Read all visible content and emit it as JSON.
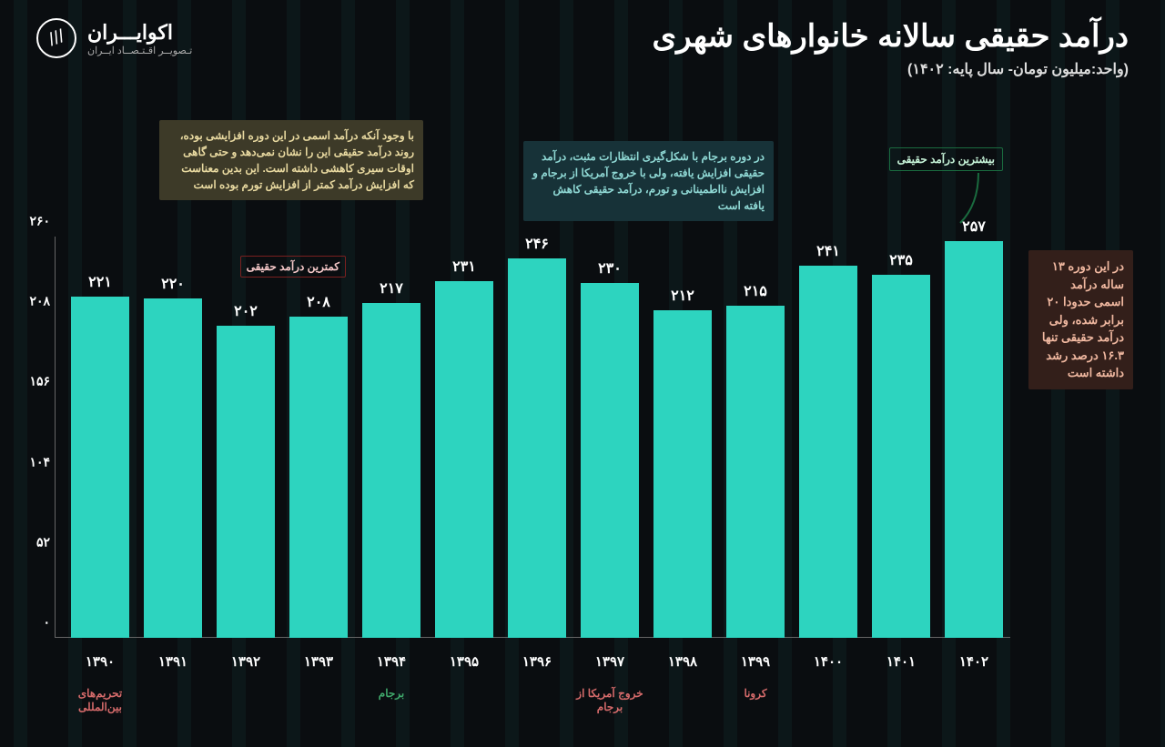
{
  "brand": {
    "name": "اکوایـــران",
    "tagline": "تـصویــر اقـتـصــاد ایــران"
  },
  "title": "درآمد حقیقی سالانه خانوارهای شهری",
  "subtitle": "(واحد:میلیون تومان- سال پایه: ۱۴۰۲)",
  "annotations": {
    "top_right_olive": {
      "text": "با وجود آنکه درآمد اسمی در این دوره افزایشی بوده، روند درآمد حقیقی این را نشان نمی‌دهد و حتی گاهی اوقات سیری کاهشی داشته است. این بدین معناست که افزایش درآمد کمتر از افزایش تورم بوده است",
      "bg": "#3d3a28",
      "color": "#e8d9a0"
    },
    "top_mid_teal": {
      "text": "در دوره برجام با شکل‌گیری انتظارات مثبت، درآمد حقیقی افزایش یافته، ولی با خروج آمریکا از برجام و افزایش نااطمینانی و تورم، درآمد حقیقی کاهش یافته است",
      "bg": "#173238",
      "color": "#8fd8d4"
    },
    "max_label": {
      "text": "بیشترین درآمد حقیقی",
      "border": "#1a6b3f",
      "color": "#c8f5da"
    },
    "min_label": {
      "text": "کمترین درآمد حقیقی",
      "border": "#7a2020",
      "color": "#f5c8c8"
    },
    "right_side": {
      "text": "در این دوره ۱۳ ساله درآمد اسمی حدودا ۲۰ برابر شده، ولی درآمد حقیقی تنها ۱۶.۳ درصد رشد داشته است",
      "bg": "#331f1a",
      "color": "#f0b8a0"
    }
  },
  "chart": {
    "type": "bar",
    "bar_color": "#2dd4bf",
    "background": "#0a0d10",
    "ylim": [
      0,
      260
    ],
    "ytick_step": 52,
    "y_ticks": [
      "۰",
      "۵۲",
      "۱۰۴",
      "۱۵۶",
      "۲۰۸",
      "۲۶۰"
    ],
    "bars": [
      {
        "year": "۱۳۹۰",
        "value": 221,
        "label": "۲۲۱",
        "event": "تحریم‌های بین‌المللی",
        "event_color": "#d46a6a"
      },
      {
        "year": "۱۳۹۱",
        "value": 220,
        "label": "۲۲۰",
        "event": "",
        "event_color": ""
      },
      {
        "year": "۱۳۹۲",
        "value": 202,
        "label": "۲۰۲",
        "event": "",
        "event_color": ""
      },
      {
        "year": "۱۳۹۳",
        "value": 208,
        "label": "۲۰۸",
        "event": "",
        "event_color": ""
      },
      {
        "year": "۱۳۹۴",
        "value": 217,
        "label": "۲۱۷",
        "event": "برجام",
        "event_color": "#3fa86b"
      },
      {
        "year": "۱۳۹۵",
        "value": 231,
        "label": "۲۳۱",
        "event": "",
        "event_color": ""
      },
      {
        "year": "۱۳۹۶",
        "value": 246,
        "label": "۲۴۶",
        "event": "",
        "event_color": ""
      },
      {
        "year": "۱۳۹۷",
        "value": 230,
        "label": "۲۳۰",
        "event": "خروج آمریکا از برجام",
        "event_color": "#d46a6a"
      },
      {
        "year": "۱۳۹۸",
        "value": 212,
        "label": "۲۱۲",
        "event": "",
        "event_color": ""
      },
      {
        "year": "۱۳۹۹",
        "value": 215,
        "label": "۲۱۵",
        "event": "کرونا",
        "event_color": "#d46a6a"
      },
      {
        "year": "۱۴۰۰",
        "value": 241,
        "label": "۲۴۱",
        "event": "",
        "event_color": ""
      },
      {
        "year": "۱۴۰۱",
        "value": 235,
        "label": "۲۳۵",
        "event": "",
        "event_color": ""
      },
      {
        "year": "۱۴۰۲",
        "value": 257,
        "label": "۲۵۷",
        "event": "",
        "event_color": ""
      }
    ]
  }
}
